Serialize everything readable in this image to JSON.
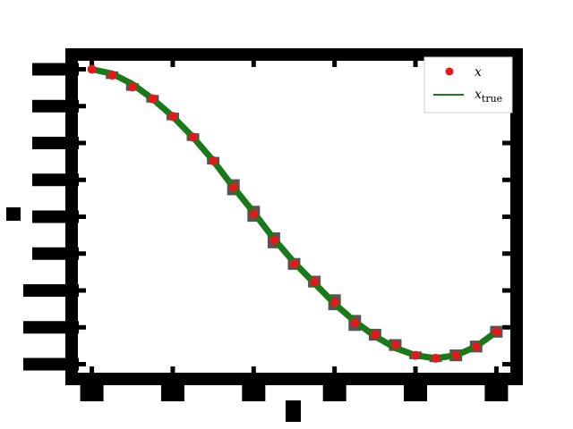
{
  "chart_data": {
    "type": "scatter",
    "title": "",
    "xlabel": "",
    "ylabel": "",
    "xlim": [
      -0.05,
      1.05
    ],
    "ylim": [
      -0.05,
      1.05
    ],
    "grid": false,
    "legend_position": "top-right",
    "series": [
      {
        "name": "x",
        "kind": "markers",
        "color": "#e31a1c",
        "x": [
          0.0,
          0.05,
          0.1,
          0.15,
          0.2,
          0.25,
          0.3,
          0.35,
          0.4,
          0.45,
          0.5,
          0.55,
          0.6,
          0.65,
          0.7,
          0.75,
          0.8,
          0.85,
          0.9,
          0.95,
          1.0
        ],
        "y": [
          1.0,
          0.98,
          0.94,
          0.9,
          0.84,
          0.77,
          0.69,
          0.6,
          0.51,
          0.42,
          0.34,
          0.28,
          0.21,
          0.14,
          0.1,
          0.065,
          0.03,
          0.02,
          0.03,
          0.06,
          0.11
        ],
        "y_error": [
          0.0,
          0.013,
          0.013,
          0.013,
          0.013,
          0.013,
          0.013,
          0.027,
          0.027,
          0.027,
          0.02,
          0.02,
          0.027,
          0.027,
          0.02,
          0.02,
          0.013,
          0.013,
          0.02,
          0.02,
          0.02
        ]
      },
      {
        "name": "true",
        "kind": "line",
        "color": "#1a7a1a",
        "x": [
          0.0,
          0.05,
          0.1,
          0.15,
          0.2,
          0.25,
          0.3,
          0.35,
          0.4,
          0.45,
          0.5,
          0.55,
          0.6,
          0.65,
          0.7,
          0.75,
          0.8,
          0.85,
          0.9,
          0.95,
          1.0
        ],
        "y": [
          1.0,
          0.985,
          0.95,
          0.9,
          0.84,
          0.77,
          0.69,
          0.6,
          0.515,
          0.425,
          0.345,
          0.275,
          0.205,
          0.145,
          0.095,
          0.055,
          0.03,
          0.02,
          0.03,
          0.06,
          0.11
        ]
      }
    ],
    "legend": [
      {
        "symbol": "marker",
        "label": "x",
        "subscript": ""
      },
      {
        "symbol": "line",
        "label": "x",
        "subscript": "true"
      }
    ]
  }
}
